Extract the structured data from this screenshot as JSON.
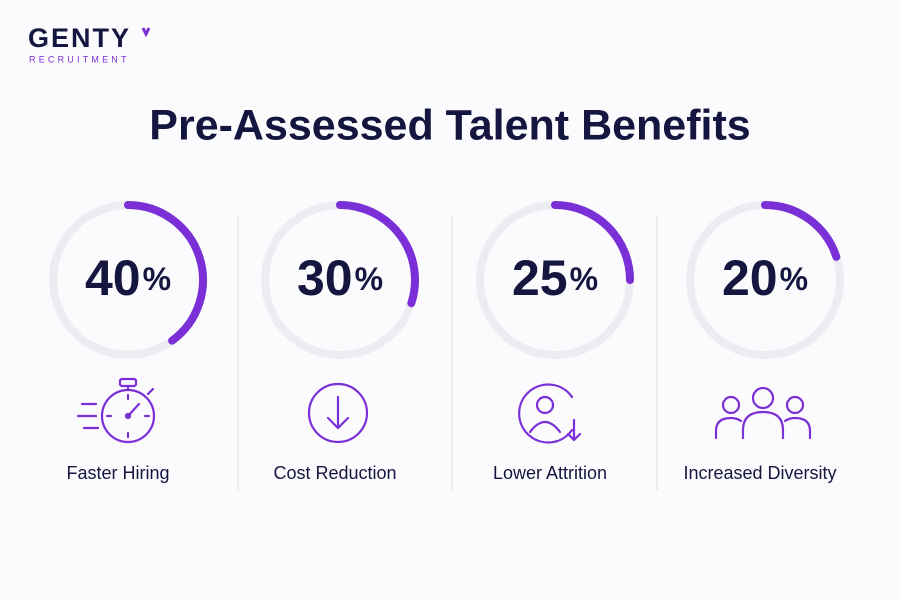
{
  "header": {
    "logo": "GENTY",
    "logo_sub": "RECRUITMENT"
  },
  "title": "Pre-Assessed Talent Benefits",
  "stats": [
    {
      "value": 40,
      "unit": "%",
      "label": "Faster Hiring"
    },
    {
      "value": 30,
      "unit": "%",
      "label": "Cost Reduction"
    },
    {
      "value": 25,
      "unit": "%",
      "label": "Lower Attrition"
    },
    {
      "value": 20,
      "unit": "%",
      "label": "Increased Diversity"
    }
  ]
}
